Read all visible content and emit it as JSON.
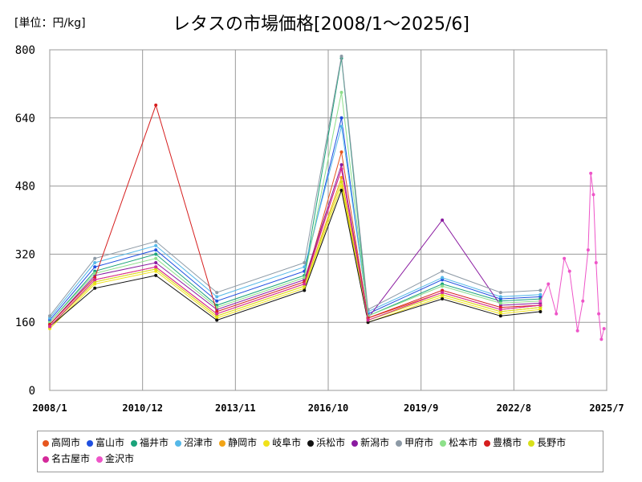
{
  "chart_data": {
    "type": "line",
    "title": "レタスの市場価格[2008/1～2025/6]",
    "unit_label": "[単位：円/kg]",
    "xlabel": "",
    "ylabel": "",
    "ylim": [
      0,
      800
    ],
    "y_ticks": [
      0,
      160,
      320,
      480,
      640,
      800
    ],
    "x_tick_labels": [
      "2008/1",
      "2010/12",
      "2013/11",
      "2016/10",
      "2019/9",
      "2022/8",
      "2025/7"
    ],
    "grid": true,
    "legend_position": "bottom",
    "series": [
      {
        "name": "高岡市",
        "color": "#e6561e",
        "values": [
          {
            "x": "2008/1",
            "y": 150
          },
          {
            "x": "2009/6",
            "y": 260
          },
          {
            "x": "2011/5",
            "y": 290
          },
          {
            "x": "2013/4",
            "y": 180
          },
          {
            "x": "2016/1",
            "y": 250
          },
          {
            "x": "2017/3",
            "y": 560
          },
          {
            "x": "2018/1",
            "y": 170
          },
          {
            "x": "2020/5",
            "y": 230
          },
          {
            "x": "2022/3",
            "y": 190
          },
          {
            "x": "2023/6",
            "y": 200
          }
        ]
      },
      {
        "name": "富山市",
        "color": "#1f4fe0",
        "values": [
          {
            "x": "2008/1",
            "y": 165
          },
          {
            "x": "2009/6",
            "y": 290
          },
          {
            "x": "2011/5",
            "y": 330
          },
          {
            "x": "2013/4",
            "y": 210
          },
          {
            "x": "2016/1",
            "y": 280
          },
          {
            "x": "2017/3",
            "y": 640
          },
          {
            "x": "2018/1",
            "y": 180
          },
          {
            "x": "2020/5",
            "y": 260
          },
          {
            "x": "2022/3",
            "y": 215
          },
          {
            "x": "2023/6",
            "y": 220
          }
        ]
      },
      {
        "name": "福井市",
        "color": "#1aa37a",
        "values": [
          {
            "x": "2008/1",
            "y": 160
          },
          {
            "x": "2009/6",
            "y": 280
          },
          {
            "x": "2011/5",
            "y": 320
          },
          {
            "x": "2013/4",
            "y": 200
          },
          {
            "x": "2016/1",
            "y": 270
          },
          {
            "x": "2017/3",
            "y": 780
          },
          {
            "x": "2018/1",
            "y": 175
          },
          {
            "x": "2020/5",
            "y": 250
          },
          {
            "x": "2022/3",
            "y": 210
          },
          {
            "x": "2023/6",
            "y": 215
          }
        ]
      },
      {
        "name": "沼津市",
        "color": "#55b8e8",
        "values": [
          {
            "x": "2008/1",
            "y": 170
          },
          {
            "x": "2009/6",
            "y": 300
          },
          {
            "x": "2011/5",
            "y": 340
          },
          {
            "x": "2013/4",
            "y": 220
          },
          {
            "x": "2016/1",
            "y": 290
          },
          {
            "x": "2017/3",
            "y": 620
          },
          {
            "x": "2018/1",
            "y": 185
          },
          {
            "x": "2020/5",
            "y": 265
          },
          {
            "x": "2022/3",
            "y": 220
          },
          {
            "x": "2023/6",
            "y": 225
          }
        ]
      },
      {
        "name": "静岡市",
        "color": "#f2a416",
        "values": [
          {
            "x": "2008/1",
            "y": 150
          },
          {
            "x": "2009/6",
            "y": 255
          },
          {
            "x": "2011/5",
            "y": 285
          },
          {
            "x": "2013/4",
            "y": 175
          },
          {
            "x": "2016/1",
            "y": 245
          },
          {
            "x": "2017/3",
            "y": 500
          },
          {
            "x": "2018/1",
            "y": 165
          },
          {
            "x": "2020/5",
            "y": 225
          },
          {
            "x": "2022/3",
            "y": 185
          },
          {
            "x": "2023/6",
            "y": 195
          }
        ]
      },
      {
        "name": "岐阜市",
        "color": "#f0e21a",
        "values": [
          {
            "x": "2008/1",
            "y": 145
          },
          {
            "x": "2009/6",
            "y": 250
          },
          {
            "x": "2011/5",
            "y": 280
          },
          {
            "x": "2013/4",
            "y": 170
          },
          {
            "x": "2016/1",
            "y": 240
          },
          {
            "x": "2017/3",
            "y": 480
          },
          {
            "x": "2018/1",
            "y": 160
          },
          {
            "x": "2020/5",
            "y": 220
          },
          {
            "x": "2022/3",
            "y": 180
          },
          {
            "x": "2023/6",
            "y": 190
          }
        ]
      },
      {
        "name": "浜松市",
        "color": "#111111",
        "values": [
          {
            "x": "2008/1",
            "y": 150
          },
          {
            "x": "2009/6",
            "y": 240
          },
          {
            "x": "2011/5",
            "y": 270
          },
          {
            "x": "2013/4",
            "y": 165
          },
          {
            "x": "2016/1",
            "y": 235
          },
          {
            "x": "2017/3",
            "y": 470
          },
          {
            "x": "2018/1",
            "y": 160
          },
          {
            "x": "2020/5",
            "y": 215
          },
          {
            "x": "2022/3",
            "y": 175
          },
          {
            "x": "2023/6",
            "y": 185
          }
        ]
      },
      {
        "name": "新潟市",
        "color": "#8a1aa0",
        "values": [
          {
            "x": "2008/1",
            "y": 155
          },
          {
            "x": "2009/6",
            "y": 270
          },
          {
            "x": "2011/5",
            "y": 300
          },
          {
            "x": "2013/4",
            "y": 190
          },
          {
            "x": "2016/1",
            "y": 260
          },
          {
            "x": "2017/3",
            "y": 530
          },
          {
            "x": "2018/1",
            "y": 170
          },
          {
            "x": "2020/5",
            "y": 400
          },
          {
            "x": "2022/3",
            "y": 200
          },
          {
            "x": "2023/6",
            "y": 205
          }
        ]
      },
      {
        "name": "甲府市",
        "color": "#8d9aa6",
        "values": [
          {
            "x": "2008/1",
            "y": 175
          },
          {
            "x": "2009/6",
            "y": 310
          },
          {
            "x": "2011/5",
            "y": 350
          },
          {
            "x": "2013/4",
            "y": 230
          },
          {
            "x": "2016/1",
            "y": 300
          },
          {
            "x": "2017/3",
            "y": 785
          },
          {
            "x": "2018/1",
            "y": 190
          },
          {
            "x": "2020/5",
            "y": 280
          },
          {
            "x": "2022/3",
            "y": 230
          },
          {
            "x": "2023/6",
            "y": 235
          }
        ]
      },
      {
        "name": "松本市",
        "color": "#8de08a",
        "values": [
          {
            "x": "2008/1",
            "y": 160
          },
          {
            "x": "2009/6",
            "y": 275
          },
          {
            "x": "2011/5",
            "y": 310
          },
          {
            "x": "2013/4",
            "y": 195
          },
          {
            "x": "2016/1",
            "y": 265
          },
          {
            "x": "2017/3",
            "y": 700
          },
          {
            "x": "2018/1",
            "y": 175
          },
          {
            "x": "2020/5",
            "y": 245
          },
          {
            "x": "2022/3",
            "y": 205
          },
          {
            "x": "2023/6",
            "y": 210
          }
        ]
      },
      {
        "name": "豊橋市",
        "color": "#d61e1e",
        "values": [
          {
            "x": "2008/1",
            "y": 155
          },
          {
            "x": "2009/6",
            "y": 265
          },
          {
            "x": "2011/5",
            "y": 670
          },
          {
            "x": "2013/4",
            "y": 185
          },
          {
            "x": "2016/1",
            "y": 255
          },
          {
            "x": "2017/3",
            "y": 520
          },
          {
            "x": "2018/1",
            "y": 170
          },
          {
            "x": "2020/5",
            "y": 235
          },
          {
            "x": "2022/3",
            "y": 195
          },
          {
            "x": "2023/6",
            "y": 200
          }
        ]
      },
      {
        "name": "長野市",
        "color": "#d8e01a",
        "values": [
          {
            "x": "2008/1",
            "y": 150
          },
          {
            "x": "2009/6",
            "y": 255
          },
          {
            "x": "2011/5",
            "y": 285
          },
          {
            "x": "2013/4",
            "y": 175
          },
          {
            "x": "2016/1",
            "y": 245
          },
          {
            "x": "2017/3",
            "y": 490
          },
          {
            "x": "2018/1",
            "y": 165
          },
          {
            "x": "2020/5",
            "y": 225
          },
          {
            "x": "2022/3",
            "y": 185
          },
          {
            "x": "2023/6",
            "y": 195
          }
        ]
      },
      {
        "name": "名古屋市",
        "color": "#d42a9a",
        "values": [
          {
            "x": "2008/1",
            "y": 150
          },
          {
            "x": "2009/6",
            "y": 260
          },
          {
            "x": "2011/5",
            "y": 290
          },
          {
            "x": "2013/4",
            "y": 180
          },
          {
            "x": "2016/1",
            "y": 250
          },
          {
            "x": "2017/3",
            "y": 520
          },
          {
            "x": "2018/1",
            "y": 165
          },
          {
            "x": "2020/5",
            "y": 230
          },
          {
            "x": "2022/3",
            "y": 190
          },
          {
            "x": "2023/6",
            "y": 200
          }
        ]
      },
      {
        "name": "金沢市",
        "color": "#ee55c8",
        "values": [
          {
            "x": "2023/6",
            "y": 210
          },
          {
            "x": "2023/9",
            "y": 250
          },
          {
            "x": "2023/12",
            "y": 180
          },
          {
            "x": "2024/3",
            "y": 310
          },
          {
            "x": "2024/5",
            "y": 280
          },
          {
            "x": "2024/8",
            "y": 140
          },
          {
            "x": "2024/10",
            "y": 210
          },
          {
            "x": "2024/12",
            "y": 330
          },
          {
            "x": "2025/1",
            "y": 510
          },
          {
            "x": "2025/2",
            "y": 460
          },
          {
            "x": "2025/3",
            "y": 300
          },
          {
            "x": "2025/4",
            "y": 180
          },
          {
            "x": "2025/5",
            "y": 120
          },
          {
            "x": "2025/6",
            "y": 145
          }
        ]
      }
    ]
  }
}
